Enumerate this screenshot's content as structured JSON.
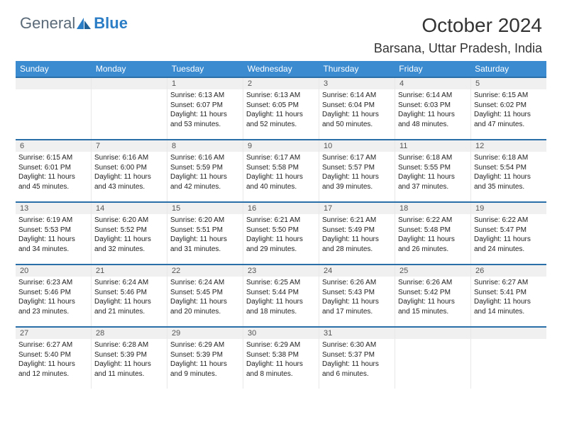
{
  "logo": {
    "text1": "General",
    "text2": "Blue"
  },
  "title": "October 2024",
  "location": "Barsana, Uttar Pradesh, India",
  "headerBg": "#3b8bd1",
  "borderColor": "#2b6fa8",
  "dow": [
    "Sunday",
    "Monday",
    "Tuesday",
    "Wednesday",
    "Thursday",
    "Friday",
    "Saturday"
  ],
  "weeks": [
    [
      {
        "n": "",
        "sr": "",
        "ss": "",
        "dl": ""
      },
      {
        "n": "",
        "sr": "",
        "ss": "",
        "dl": ""
      },
      {
        "n": "1",
        "sr": "Sunrise: 6:13 AM",
        "ss": "Sunset: 6:07 PM",
        "dl": "Daylight: 11 hours and 53 minutes."
      },
      {
        "n": "2",
        "sr": "Sunrise: 6:13 AM",
        "ss": "Sunset: 6:05 PM",
        "dl": "Daylight: 11 hours and 52 minutes."
      },
      {
        "n": "3",
        "sr": "Sunrise: 6:14 AM",
        "ss": "Sunset: 6:04 PM",
        "dl": "Daylight: 11 hours and 50 minutes."
      },
      {
        "n": "4",
        "sr": "Sunrise: 6:14 AM",
        "ss": "Sunset: 6:03 PM",
        "dl": "Daylight: 11 hours and 48 minutes."
      },
      {
        "n": "5",
        "sr": "Sunrise: 6:15 AM",
        "ss": "Sunset: 6:02 PM",
        "dl": "Daylight: 11 hours and 47 minutes."
      }
    ],
    [
      {
        "n": "6",
        "sr": "Sunrise: 6:15 AM",
        "ss": "Sunset: 6:01 PM",
        "dl": "Daylight: 11 hours and 45 minutes."
      },
      {
        "n": "7",
        "sr": "Sunrise: 6:16 AM",
        "ss": "Sunset: 6:00 PM",
        "dl": "Daylight: 11 hours and 43 minutes."
      },
      {
        "n": "8",
        "sr": "Sunrise: 6:16 AM",
        "ss": "Sunset: 5:59 PM",
        "dl": "Daylight: 11 hours and 42 minutes."
      },
      {
        "n": "9",
        "sr": "Sunrise: 6:17 AM",
        "ss": "Sunset: 5:58 PM",
        "dl": "Daylight: 11 hours and 40 minutes."
      },
      {
        "n": "10",
        "sr": "Sunrise: 6:17 AM",
        "ss": "Sunset: 5:57 PM",
        "dl": "Daylight: 11 hours and 39 minutes."
      },
      {
        "n": "11",
        "sr": "Sunrise: 6:18 AM",
        "ss": "Sunset: 5:55 PM",
        "dl": "Daylight: 11 hours and 37 minutes."
      },
      {
        "n": "12",
        "sr": "Sunrise: 6:18 AM",
        "ss": "Sunset: 5:54 PM",
        "dl": "Daylight: 11 hours and 35 minutes."
      }
    ],
    [
      {
        "n": "13",
        "sr": "Sunrise: 6:19 AM",
        "ss": "Sunset: 5:53 PM",
        "dl": "Daylight: 11 hours and 34 minutes."
      },
      {
        "n": "14",
        "sr": "Sunrise: 6:20 AM",
        "ss": "Sunset: 5:52 PM",
        "dl": "Daylight: 11 hours and 32 minutes."
      },
      {
        "n": "15",
        "sr": "Sunrise: 6:20 AM",
        "ss": "Sunset: 5:51 PM",
        "dl": "Daylight: 11 hours and 31 minutes."
      },
      {
        "n": "16",
        "sr": "Sunrise: 6:21 AM",
        "ss": "Sunset: 5:50 PM",
        "dl": "Daylight: 11 hours and 29 minutes."
      },
      {
        "n": "17",
        "sr": "Sunrise: 6:21 AM",
        "ss": "Sunset: 5:49 PM",
        "dl": "Daylight: 11 hours and 28 minutes."
      },
      {
        "n": "18",
        "sr": "Sunrise: 6:22 AM",
        "ss": "Sunset: 5:48 PM",
        "dl": "Daylight: 11 hours and 26 minutes."
      },
      {
        "n": "19",
        "sr": "Sunrise: 6:22 AM",
        "ss": "Sunset: 5:47 PM",
        "dl": "Daylight: 11 hours and 24 minutes."
      }
    ],
    [
      {
        "n": "20",
        "sr": "Sunrise: 6:23 AM",
        "ss": "Sunset: 5:46 PM",
        "dl": "Daylight: 11 hours and 23 minutes."
      },
      {
        "n": "21",
        "sr": "Sunrise: 6:24 AM",
        "ss": "Sunset: 5:46 PM",
        "dl": "Daylight: 11 hours and 21 minutes."
      },
      {
        "n": "22",
        "sr": "Sunrise: 6:24 AM",
        "ss": "Sunset: 5:45 PM",
        "dl": "Daylight: 11 hours and 20 minutes."
      },
      {
        "n": "23",
        "sr": "Sunrise: 6:25 AM",
        "ss": "Sunset: 5:44 PM",
        "dl": "Daylight: 11 hours and 18 minutes."
      },
      {
        "n": "24",
        "sr": "Sunrise: 6:26 AM",
        "ss": "Sunset: 5:43 PM",
        "dl": "Daylight: 11 hours and 17 minutes."
      },
      {
        "n": "25",
        "sr": "Sunrise: 6:26 AM",
        "ss": "Sunset: 5:42 PM",
        "dl": "Daylight: 11 hours and 15 minutes."
      },
      {
        "n": "26",
        "sr": "Sunrise: 6:27 AM",
        "ss": "Sunset: 5:41 PM",
        "dl": "Daylight: 11 hours and 14 minutes."
      }
    ],
    [
      {
        "n": "27",
        "sr": "Sunrise: 6:27 AM",
        "ss": "Sunset: 5:40 PM",
        "dl": "Daylight: 11 hours and 12 minutes."
      },
      {
        "n": "28",
        "sr": "Sunrise: 6:28 AM",
        "ss": "Sunset: 5:39 PM",
        "dl": "Daylight: 11 hours and 11 minutes."
      },
      {
        "n": "29",
        "sr": "Sunrise: 6:29 AM",
        "ss": "Sunset: 5:39 PM",
        "dl": "Daylight: 11 hours and 9 minutes."
      },
      {
        "n": "30",
        "sr": "Sunrise: 6:29 AM",
        "ss": "Sunset: 5:38 PM",
        "dl": "Daylight: 11 hours and 8 minutes."
      },
      {
        "n": "31",
        "sr": "Sunrise: 6:30 AM",
        "ss": "Sunset: 5:37 PM",
        "dl": "Daylight: 11 hours and 6 minutes."
      },
      {
        "n": "",
        "sr": "",
        "ss": "",
        "dl": ""
      },
      {
        "n": "",
        "sr": "",
        "ss": "",
        "dl": ""
      }
    ]
  ]
}
